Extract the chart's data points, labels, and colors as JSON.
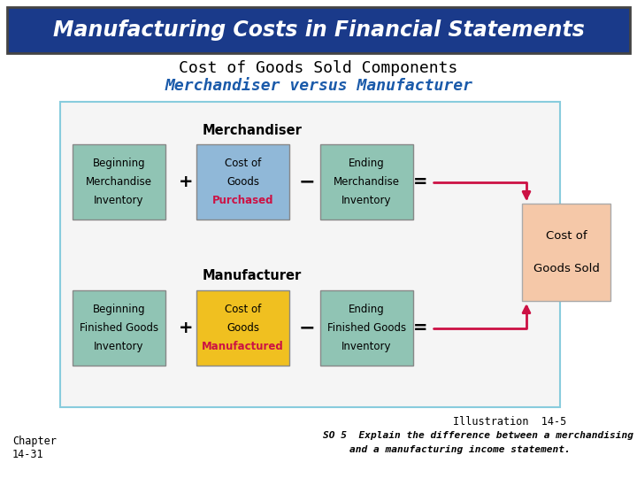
{
  "title_banner": "Manufacturing Costs in Financial Statements",
  "title_banner_bg": "#1a3a8a",
  "title_banner_fg": "#ffffff",
  "subtitle1": "Cost of Goods Sold Components",
  "subtitle2": "Merchandiser versus Manufacturer",
  "subtitle1_color": "#000000",
  "subtitle2_color": "#1a5aaa",
  "box_bg_green": "#90c4b4",
  "box_bg_blue": "#90b8d8",
  "box_bg_yellow": "#f0c020",
  "box_bg_peach": "#f5c8a8",
  "border_color": "#88ccdd",
  "arrow_color": "#cc1144",
  "bg_color": "#ffffff",
  "diagram_bg": "#f5f5f5",
  "merchandiser_label": "Merchandiser",
  "manufacturer_label": "Manufacturer",
  "merch_box1": [
    "Beginning",
    "Merchandise",
    "Inventory"
  ],
  "merch_box2": [
    "Cost of",
    "Goods",
    "Purchased"
  ],
  "merch_box3": [
    "Ending",
    "Merchandise",
    "Inventory"
  ],
  "manuf_box1": [
    "Beginning",
    "Finished Goods",
    "Inventory"
  ],
  "manuf_box2": [
    "Cost of",
    "Goods",
    "Manufactured"
  ],
  "manuf_box3": [
    "Ending",
    "Finished Goods",
    "Inventory"
  ],
  "result_box": [
    "Cost of",
    "Goods Sold"
  ],
  "highlight_color": "#cc1144",
  "illus_text": "Illustration  14-5",
  "so_text": "SO 5  Explain the difference between a merchandising",
  "so_text2": "and a manufacturing income statement.",
  "chapter_text": "Chapter\n14-31"
}
